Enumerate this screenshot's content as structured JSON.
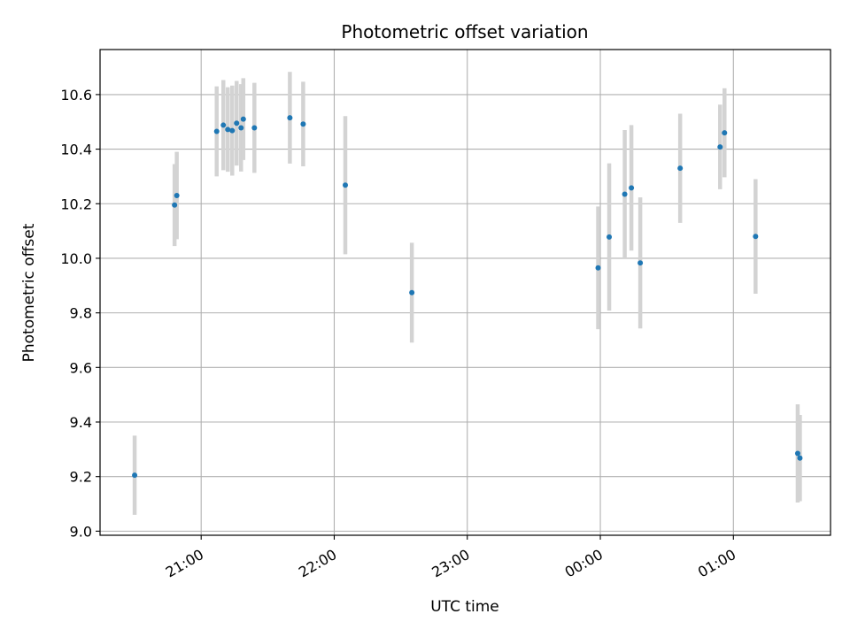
{
  "chart_data": {
    "type": "scatter",
    "title": "Photometric offset variation",
    "xlabel": "UTC time",
    "ylabel": "Photometric offset",
    "x_ticks": [
      "21:00",
      "22:00",
      "23:00",
      "00:00",
      "01:00"
    ],
    "x_tick_hours": [
      21,
      22,
      23,
      24,
      25
    ],
    "xlim_hours": [
      20.24,
      25.73
    ],
    "y_ticks": [
      "9.0",
      "9.2",
      "9.4",
      "9.6",
      "9.8",
      "10.0",
      "10.2",
      "10.4",
      "10.6"
    ],
    "ylim": [
      8.985,
      10.765
    ],
    "grid": true,
    "point_color": "#1f77b4",
    "errorbar_color": "#d3d3d3",
    "points": [
      {
        "time": "20:30",
        "y": 9.205,
        "err": 0.145
      },
      {
        "time": "20:48",
        "y": 10.195,
        "err": 0.15
      },
      {
        "time": "20:49",
        "y": 10.23,
        "err": 0.16
      },
      {
        "time": "21:07",
        "y": 10.465,
        "err": 0.165
      },
      {
        "time": "21:10",
        "y": 10.488,
        "err": 0.165
      },
      {
        "time": "21:12",
        "y": 10.472,
        "err": 0.155
      },
      {
        "time": "21:14",
        "y": 10.468,
        "err": 0.165
      },
      {
        "time": "21:16",
        "y": 10.495,
        "err": 0.155
      },
      {
        "time": "21:18",
        "y": 10.478,
        "err": 0.16
      },
      {
        "time": "21:19",
        "y": 10.51,
        "err": 0.15
      },
      {
        "time": "21:24",
        "y": 10.478,
        "err": 0.165
      },
      {
        "time": "21:40",
        "y": 10.515,
        "err": 0.168
      },
      {
        "time": "21:46",
        "y": 10.492,
        "err": 0.155
      },
      {
        "time": "22:05",
        "y": 10.268,
        "err": 0.253
      },
      {
        "time": "22:35",
        "y": 9.874,
        "err": 0.183
      },
      {
        "time": "23:59",
        "y": 9.965,
        "err": 0.225
      },
      {
        "time": "00:04",
        "y": 10.078,
        "err": 0.27
      },
      {
        "time": "00:11",
        "y": 10.235,
        "err": 0.235
      },
      {
        "time": "00:14",
        "y": 10.258,
        "err": 0.23
      },
      {
        "time": "00:18",
        "y": 9.983,
        "err": 0.24
      },
      {
        "time": "00:36",
        "y": 10.33,
        "err": 0.2
      },
      {
        "time": "00:54",
        "y": 10.408,
        "err": 0.155
      },
      {
        "time": "00:56",
        "y": 10.46,
        "err": 0.163
      },
      {
        "time": "01:10",
        "y": 10.08,
        "err": 0.21
      },
      {
        "time": "01:29",
        "y": 9.285,
        "err": 0.18
      },
      {
        "time": "01:30",
        "y": 9.268,
        "err": 0.158
      }
    ]
  }
}
